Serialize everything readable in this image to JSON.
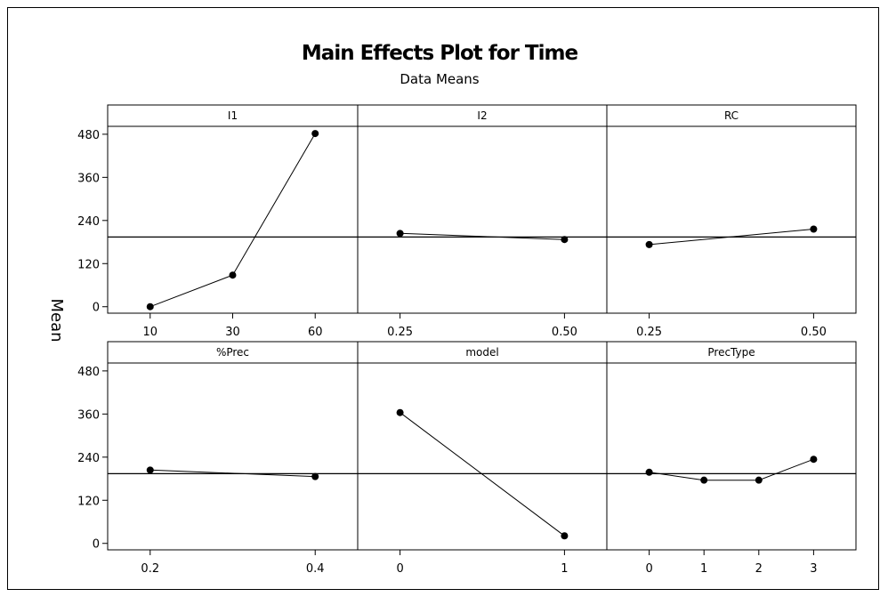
{
  "chart_data": {
    "type": "line",
    "title": "Main Effects Plot for Time",
    "subtitle": "Data Means",
    "ylabel": "Mean",
    "ylim": [
      -18,
      502
    ],
    "yticks": [
      0,
      120,
      240,
      360,
      480
    ],
    "reference_mean": 194,
    "panels": [
      {
        "name": "I1",
        "categories": [
          "10",
          "30",
          "60"
        ],
        "values": [
          0,
          88,
          482
        ]
      },
      {
        "name": "I2",
        "categories": [
          "0.25",
          "0.50"
        ],
        "values": [
          204,
          187
        ]
      },
      {
        "name": "RC",
        "categories": [
          "0.25",
          "0.50"
        ],
        "values": [
          173,
          216
        ]
      },
      {
        "name": "%Prec",
        "categories": [
          "0.2",
          "0.4"
        ],
        "values": [
          204,
          186
        ]
      },
      {
        "name": "model",
        "categories": [
          "0",
          "1"
        ],
        "values": [
          364,
          21
        ]
      },
      {
        "name": "PrecType",
        "categories": [
          "0",
          "1",
          "2",
          "3"
        ],
        "values": [
          198,
          176,
          176,
          234
        ]
      }
    ]
  }
}
